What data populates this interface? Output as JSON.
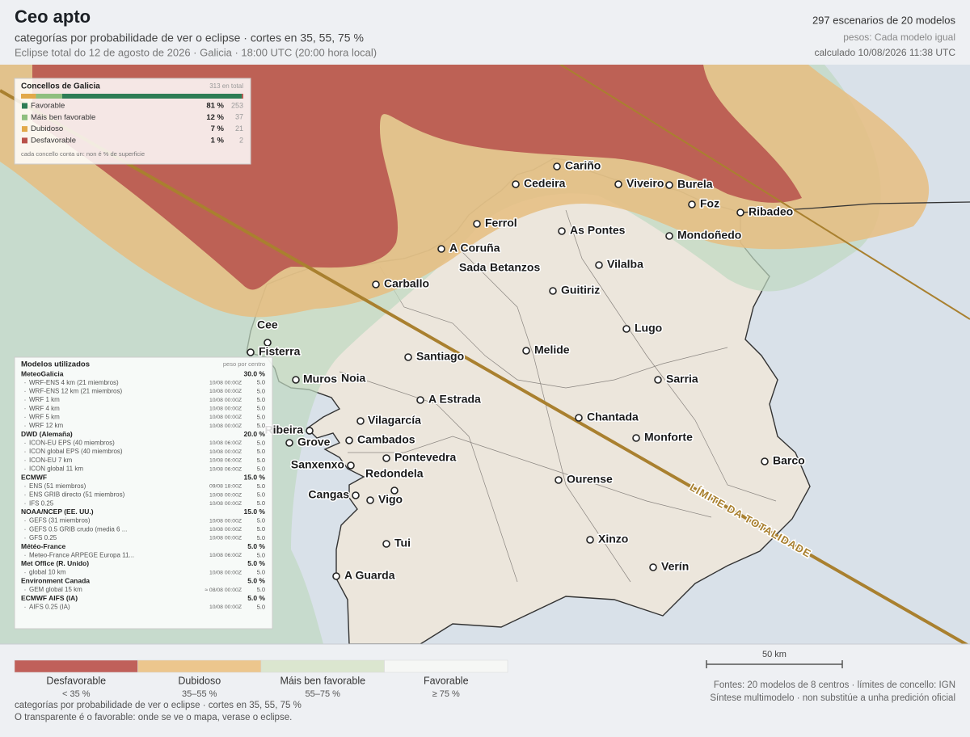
{
  "header": {
    "title": "Ceo apto",
    "subtitle": "categorías por probabilidade de ver o eclipse · cortes en 35, 55, 75 %",
    "details": "Eclipse total do 12 de agosto de 2026 · Galicia · 18:00 UTC (20:00 hora local)",
    "scenarios": "297 escenarios de 20 modelos",
    "weights": "pesos: Cada modelo igual",
    "computed": "calculado 10/08/2026 11:38 UTC"
  },
  "map": {
    "cities": [
      "Cariño",
      "Cedeira",
      "Viveiro",
      "Burela",
      "Foz",
      "Ribadeo",
      "Ferrol",
      "As Pontes",
      "Mondoñedo",
      "A Coruña",
      "Sada",
      "Betanzos",
      "Vilalba",
      "Carballo",
      "Guitiriz",
      "Cee",
      "Fisterra",
      "Lugo",
      "Melide",
      "Santiago",
      "Muros",
      "Noia",
      "Sarria",
      "A Estrada",
      "Chantada",
      "Vilagarcía",
      "Ribeira",
      "Grove",
      "Cambados",
      "Monforte",
      "Sanxenxo",
      "Pontevedra",
      "Redondela",
      "Barco",
      "Ourense",
      "Cangas",
      "Vigo",
      "Tui",
      "Xinzo",
      "Verín",
      "A Guarda"
    ],
    "totality_label": "LÍMITE DA TOTALIDADE",
    "scale_label": "50 km"
  },
  "summary": {
    "title": "Concellos de Galicia",
    "total": "313 en total",
    "rows": [
      {
        "label": "Favorable",
        "percent": "81 %",
        "count": 253,
        "color": "#2e7d55"
      },
      {
        "label": "Máis ben favorable",
        "percent": "12 %",
        "count": 37,
        "color": "#8fbf7f"
      },
      {
        "label": "Dubidoso",
        "percent": "7 %",
        "count": 21,
        "color": "#e2a94a"
      },
      {
        "label": "Desfavorable",
        "percent": "1 %",
        "count": 2,
        "color": "#b9514a"
      }
    ],
    "note": "cada concello conta un: non é % de superficie"
  },
  "models": {
    "title": "Modelos utilizados",
    "column": "peso por centro",
    "groups": [
      {
        "name": "MeteoGalicia",
        "weight": "30.0 %",
        "models": [
          {
            "name": "WRF-ENS 4 km (21 miembros)",
            "run": "10/08 00:00Z",
            "weight": "5.0"
          },
          {
            "name": "WRF-ENS 12 km (21 miembros)",
            "run": "10/08 00:00Z",
            "weight": "5.0"
          },
          {
            "name": "WRF 1 km",
            "run": "10/08 00:00Z",
            "weight": "5.0"
          },
          {
            "name": "WRF 4 km",
            "run": "10/08 00:00Z",
            "weight": "5.0"
          },
          {
            "name": "WRF 5 km",
            "run": "10/08 00:00Z",
            "weight": "5.0"
          },
          {
            "name": "WRF 12 km",
            "run": "10/08 00:00Z",
            "weight": "5.0"
          }
        ]
      },
      {
        "name": "DWD (Alemaña)",
        "weight": "20.0 %",
        "models": [
          {
            "name": "ICON-EU EPS (40 miembros)",
            "run": "10/08 06:00Z",
            "weight": "5.0"
          },
          {
            "name": "ICON global EPS (40 miembros)",
            "run": "10/08 00:00Z",
            "weight": "5.0"
          },
          {
            "name": "ICON-EU 7 km",
            "run": "10/08 06:00Z",
            "weight": "5.0"
          },
          {
            "name": "ICON global 11 km",
            "run": "10/08 06:00Z",
            "weight": "5.0"
          }
        ]
      },
      {
        "name": "ECMWF",
        "weight": "15.0 %",
        "models": [
          {
            "name": "ENS (51 miembros)",
            "run": "09/08 18:00Z",
            "weight": "5.0"
          },
          {
            "name": "ENS GRIB directo (51 miembros)",
            "run": "10/08 00:00Z",
            "weight": "5.0"
          },
          {
            "name": "IFS 0.25",
            "run": "10/08 00:00Z",
            "weight": "5.0"
          }
        ]
      },
      {
        "name": "NOAA/NCEP (EE. UU.)",
        "weight": "15.0 %",
        "models": [
          {
            "name": "GEFS (31 miembros)",
            "run": "10/08 00:00Z",
            "weight": "5.0"
          },
          {
            "name": "GEFS 0.5 GRIB crudo (media 6 ...",
            "run": "10/08 00:00Z",
            "weight": "5.0"
          },
          {
            "name": "GFS 0.25",
            "run": "10/08 00:00Z",
            "weight": "5.0"
          }
        ]
      },
      {
        "name": "Météo-France",
        "weight": "5.0 %",
        "models": [
          {
            "name": "Meteo-France ARPEGE Europa 11...",
            "run": "10/08 06:00Z",
            "weight": "5.0"
          }
        ]
      },
      {
        "name": "Met Office (R. Unido)",
        "weight": "5.0 %",
        "models": [
          {
            "name": "global 10 km",
            "run": "10/08 00:00Z",
            "weight": "5.0"
          }
        ]
      },
      {
        "name": "Environment Canada",
        "weight": "5.0 %",
        "models": [
          {
            "name": "GEM global 15 km",
            "run": "≈ 08/08 00:00Z",
            "weight": "5.0"
          }
        ]
      },
      {
        "name": "ECMWF AIFS (IA)",
        "weight": "5.0 %",
        "models": [
          {
            "name": "AIFS 0.25 (IA)",
            "run": "10/08 00:00Z",
            "weight": "5.0"
          }
        ]
      }
    ]
  },
  "legend": {
    "categories": [
      {
        "label": "Desfavorable",
        "range": "< 35 %",
        "color": "#c0605a"
      },
      {
        "label": "Dubidoso",
        "range": "35–55 %",
        "color": "#ecc68d"
      },
      {
        "label": "Máis ben favorable",
        "range": "55–75 %",
        "color": "#dbe6cf"
      },
      {
        "label": "Favorable",
        "range": "≥ 75 %",
        "color": "#f6f7f5"
      }
    ],
    "notes": [
      "categorías por probabilidade de ver o eclipse · cortes en 35, 55, 75 %",
      "O transparente é o favorable: onde se ve o mapa, verase o eclipse."
    ]
  },
  "footer": {
    "sources": "Fontes: 20 modelos de 8 centros · límites de concello: IGN",
    "disclaimer": "Síntese multimodelo · non substitúe a unha predición oficial"
  }
}
